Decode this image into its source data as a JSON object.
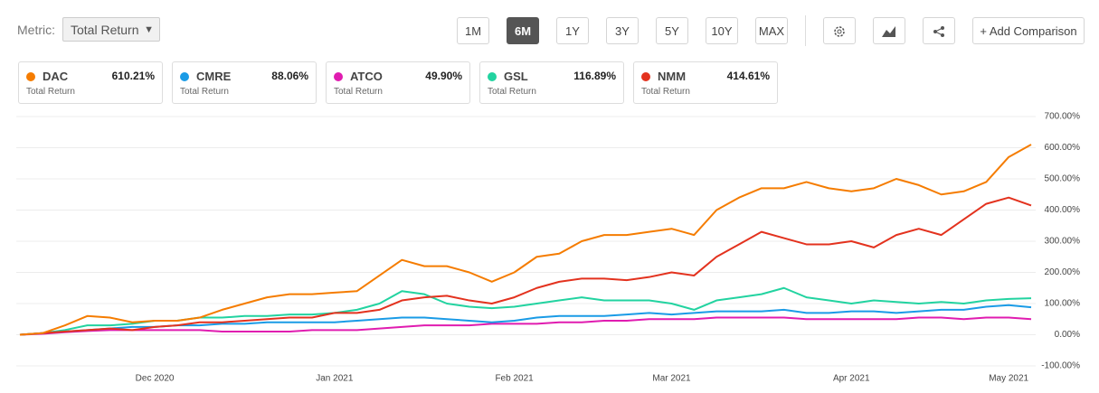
{
  "ui": {
    "metric_label": "Metric:",
    "metric": "Total Return",
    "ranges": [
      "1M",
      "6M",
      "1Y",
      "3Y",
      "5Y",
      "10Y",
      "MAX"
    ],
    "selected_range": "6M",
    "add_comparison": "+ Add Comparison"
  },
  "chart_data": {
    "type": "line",
    "categories": [
      null,
      null,
      null,
      null,
      null,
      null,
      "Dec 2020",
      null,
      null,
      null,
      null,
      null,
      null,
      null,
      "Jan 2021",
      null,
      null,
      null,
      null,
      null,
      null,
      null,
      "Feb 2021",
      null,
      null,
      null,
      null,
      null,
      null,
      "Mar 2021",
      null,
      null,
      null,
      null,
      null,
      null,
      null,
      "Apr 2021",
      null,
      null,
      null,
      null,
      null,
      null,
      "May 2021",
      null
    ],
    "ylim": [
      -100,
      700
    ],
    "yticks": [
      {
        "value": -100,
        "label": "-100.00%"
      },
      {
        "value": 0,
        "label": "0.00%"
      },
      {
        "value": 100,
        "label": "100.00%"
      },
      {
        "value": 200,
        "label": "200.00%"
      },
      {
        "value": 300,
        "label": "300.00%"
      },
      {
        "value": 400,
        "label": "400.00%"
      },
      {
        "value": 500,
        "label": "500.00%"
      },
      {
        "value": 600,
        "label": "600.00%"
      },
      {
        "value": 700,
        "label": "700.00%"
      }
    ],
    "grid": true,
    "series": [
      {
        "name": "DAC",
        "color": "#f57c00",
        "values": [
          0,
          5,
          30,
          60,
          55,
          40,
          45,
          45,
          55,
          80,
          100,
          120,
          130,
          130,
          135,
          140,
          190,
          240,
          220,
          220,
          200,
          170,
          200,
          250,
          260,
          300,
          320,
          320,
          330,
          340,
          320,
          400,
          440,
          470,
          470,
          490,
          470,
          460,
          470,
          500,
          480,
          450,
          460,
          490,
          570,
          610.21
        ],
        "value_labels": [
          null,
          null,
          null,
          null,
          null,
          null,
          null,
          null,
          null,
          null,
          null,
          null,
          null,
          null,
          null,
          null,
          null,
          null,
          null,
          null,
          null,
          null,
          null,
          null,
          null,
          null,
          null,
          null,
          null,
          null,
          null,
          null,
          null,
          null,
          null,
          null,
          null,
          null,
          null,
          null,
          null,
          null,
          null,
          null,
          null,
          "610.21%"
        ]
      },
      {
        "name": "CMRE",
        "color": "#1a9be6",
        "values": [
          0,
          5,
          10,
          15,
          20,
          25,
          25,
          30,
          30,
          35,
          35,
          40,
          40,
          40,
          40,
          45,
          50,
          55,
          55,
          50,
          45,
          40,
          45,
          55,
          60,
          60,
          60,
          65,
          70,
          65,
          70,
          75,
          75,
          75,
          80,
          70,
          70,
          75,
          75,
          70,
          75,
          80,
          80,
          90,
          95,
          88.06
        ],
        "value_labels": [
          null,
          null,
          null,
          null,
          null,
          null,
          null,
          null,
          null,
          null,
          null,
          null,
          null,
          null,
          null,
          null,
          null,
          null,
          null,
          null,
          null,
          null,
          null,
          null,
          null,
          null,
          null,
          null,
          null,
          null,
          null,
          null,
          null,
          null,
          null,
          null,
          null,
          null,
          null,
          null,
          null,
          null,
          null,
          null,
          null,
          "88.06%"
        ]
      },
      {
        "name": "ATCO",
        "color": "#e01cb0",
        "values": [
          0,
          3,
          8,
          12,
          15,
          15,
          15,
          15,
          15,
          10,
          10,
          10,
          10,
          15,
          15,
          15,
          20,
          25,
          30,
          30,
          30,
          35,
          35,
          35,
          40,
          40,
          45,
          45,
          50,
          50,
          50,
          55,
          55,
          55,
          55,
          50,
          50,
          50,
          50,
          50,
          55,
          55,
          50,
          55,
          55,
          49.9
        ],
        "value_labels": [
          null,
          null,
          null,
          null,
          null,
          null,
          null,
          null,
          null,
          null,
          null,
          null,
          null,
          null,
          null,
          null,
          null,
          null,
          null,
          null,
          null,
          null,
          null,
          null,
          null,
          null,
          null,
          null,
          null,
          null,
          null,
          null,
          null,
          null,
          null,
          null,
          null,
          null,
          null,
          null,
          null,
          null,
          null,
          null,
          null,
          "49.90%"
        ]
      },
      {
        "name": "GSL",
        "color": "#22d3a0",
        "values": [
          0,
          5,
          15,
          30,
          30,
          35,
          45,
          45,
          55,
          55,
          60,
          60,
          65,
          65,
          70,
          80,
          100,
          140,
          130,
          100,
          90,
          85,
          90,
          100,
          110,
          120,
          110,
          110,
          110,
          100,
          80,
          110,
          120,
          130,
          150,
          120,
          110,
          100,
          110,
          105,
          100,
          105,
          100,
          110,
          115,
          116.89
        ],
        "value_labels": [
          null,
          null,
          null,
          null,
          null,
          null,
          null,
          null,
          null,
          null,
          null,
          null,
          null,
          null,
          null,
          null,
          null,
          null,
          null,
          null,
          null,
          null,
          null,
          null,
          null,
          null,
          null,
          null,
          null,
          null,
          null,
          null,
          null,
          null,
          null,
          null,
          null,
          null,
          null,
          null,
          null,
          null,
          null,
          null,
          null,
          "116.89%"
        ]
      },
      {
        "name": "NMM",
        "color": "#e3321e",
        "values": [
          0,
          5,
          10,
          15,
          20,
          15,
          25,
          30,
          40,
          40,
          45,
          50,
          55,
          55,
          70,
          70,
          80,
          110,
          120,
          125,
          110,
          100,
          120,
          150,
          170,
          180,
          180,
          175,
          185,
          200,
          190,
          250,
          290,
          330,
          310,
          290,
          290,
          300,
          280,
          320,
          340,
          320,
          370,
          420,
          440,
          414.61
        ],
        "value_labels": [
          null,
          null,
          null,
          null,
          null,
          null,
          null,
          null,
          null,
          null,
          null,
          null,
          null,
          null,
          null,
          null,
          null,
          null,
          null,
          null,
          null,
          null,
          null,
          null,
          null,
          null,
          null,
          null,
          null,
          null,
          null,
          null,
          null,
          null,
          null,
          null,
          null,
          null,
          null,
          null,
          null,
          null,
          null,
          null,
          null,
          "414.61%"
        ]
      }
    ]
  }
}
